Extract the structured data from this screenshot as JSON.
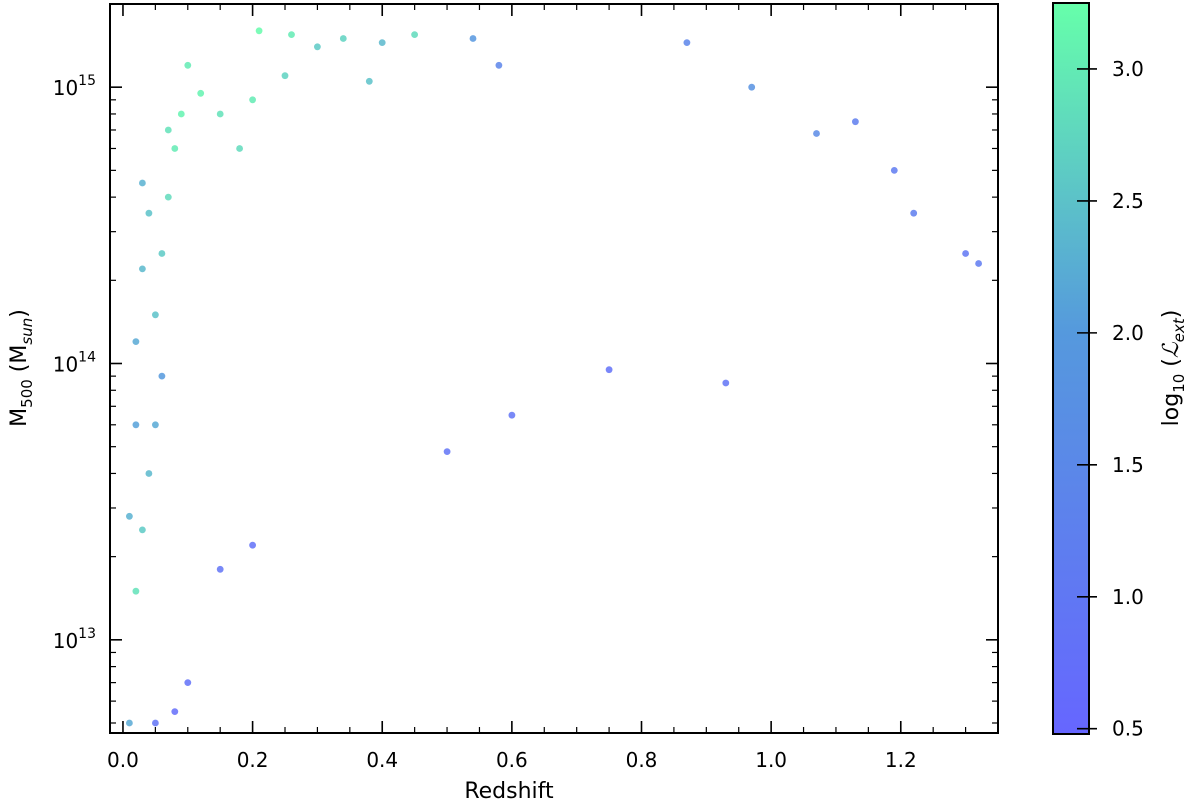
{
  "chart_data": {
    "type": "scatter",
    "title": "",
    "xlabel": "Redshift",
    "ylabel_main": "M",
    "ylabel_sub": "500",
    "ylabel_unit_open": " (M",
    "ylabel_unit_sub": "sun",
    "ylabel_unit_close": ")",
    "xscale": "linear",
    "yscale": "log",
    "xlim": [
      -0.02,
      1.35
    ],
    "ylim": [
      4600000000000.0,
      2000000000000000.0
    ],
    "xticks": [
      0.0,
      0.2,
      0.4,
      0.6,
      0.8,
      1.0,
      1.2
    ],
    "xtick_labels": [
      "0.0",
      "0.2",
      "0.4",
      "0.6",
      "0.8",
      "1.0",
      "1.2"
    ],
    "yticks": [
      10000000000000.0,
      100000000000000.0,
      1000000000000000.0
    ],
    "ytick_bases": [
      "10",
      "10",
      "10"
    ],
    "ytick_exps": [
      "13",
      "14",
      "15"
    ],
    "colorbar": {
      "label_main": "log",
      "label_sub": "10",
      "label_open": " (",
      "label_symbol": "ℒ",
      "label_symsub": "ext",
      "label_close": ")",
      "range": [
        0.48,
        3.25
      ],
      "ticks": [
        0.5,
        1.0,
        1.5,
        2.0,
        2.5,
        3.0
      ],
      "tick_labels": [
        "0.5",
        "1.0",
        "1.5",
        "2.0",
        "2.5",
        "3.0"
      ],
      "color_low": "#6666ff",
      "color_mid": "#5599dd",
      "color_high": "#66ffaa"
    },
    "points": [
      [
        0.02,
        15000000000000.0,
        2.9
      ],
      [
        0.03,
        25000000000000.0,
        2.6
      ],
      [
        0.04,
        40000000000000.0,
        2.4
      ],
      [
        0.05,
        60000000000000.0,
        2.2
      ],
      [
        0.06,
        90000000000000.0,
        2.0
      ],
      [
        0.05,
        150000000000000.0,
        2.5
      ],
      [
        0.06,
        250000000000000.0,
        2.6
      ],
      [
        0.07,
        400000000000000.0,
        2.8
      ],
      [
        0.08,
        600000000000000.0,
        3.0
      ],
      [
        0.09,
        800000000000000.0,
        3.1
      ],
      [
        0.1,
        1200000000000000.0,
        3.0
      ],
      [
        0.15,
        800000000000000.0,
        2.9
      ],
      [
        0.18,
        600000000000000.0,
        2.8
      ],
      [
        0.2,
        900000000000000.0,
        3.0
      ],
      [
        0.21,
        1600000000000000.0,
        3.2
      ],
      [
        0.25,
        1100000000000000.0,
        2.7
      ],
      [
        0.26,
        1550000000000000.0,
        3.0
      ],
      [
        0.3,
        1400000000000000.0,
        2.6
      ],
      [
        0.34,
        1500000000000000.0,
        2.7
      ],
      [
        0.38,
        1050000000000000.0,
        2.5
      ],
      [
        0.4,
        1450000000000000.0,
        2.4
      ],
      [
        0.45,
        1550000000000000.0,
        2.8
      ],
      [
        0.54,
        1500000000000000.0,
        1.9
      ],
      [
        0.58,
        1200000000000000.0,
        1.4
      ],
      [
        0.87,
        1450000000000000.0,
        1.4
      ],
      [
        0.97,
        1000000000000000.0,
        1.8
      ],
      [
        1.07,
        680000000000000.0,
        1.6
      ],
      [
        1.13,
        750000000000000.0,
        1.2
      ],
      [
        1.19,
        500000000000000.0,
        1.1
      ],
      [
        1.22,
        350000000000000.0,
        1.2
      ],
      [
        1.3,
        250000000000000.0,
        1.0
      ],
      [
        1.32,
        230000000000000.0,
        1.1
      ],
      [
        0.93,
        85000000000000.0,
        0.9
      ],
      [
        0.75,
        95000000000000.0,
        0.8
      ],
      [
        0.6,
        65000000000000.0,
        0.9
      ],
      [
        0.5,
        48000000000000.0,
        0.9
      ],
      [
        0.2,
        22000000000000.0,
        0.8
      ],
      [
        0.15,
        18000000000000.0,
        0.9
      ],
      [
        0.1,
        7000000000000.0,
        0.8
      ],
      [
        0.08,
        5500000000000.0,
        0.7
      ],
      [
        0.05,
        5000000000000.0,
        0.9
      ],
      [
        0.01,
        5000000000000.0,
        2.2
      ],
      [
        0.01,
        28000000000000.0,
        2.3
      ],
      [
        0.02,
        60000000000000.0,
        2.1
      ],
      [
        0.02,
        120000000000000.0,
        2.2
      ],
      [
        0.03,
        220000000000000.0,
        2.4
      ],
      [
        0.04,
        350000000000000.0,
        2.5
      ],
      [
        0.03,
        450000000000000.0,
        2.3
      ],
      [
        0.07,
        700000000000000.0,
        2.9
      ],
      [
        0.12,
        950000000000000.0,
        3.1
      ]
    ]
  }
}
